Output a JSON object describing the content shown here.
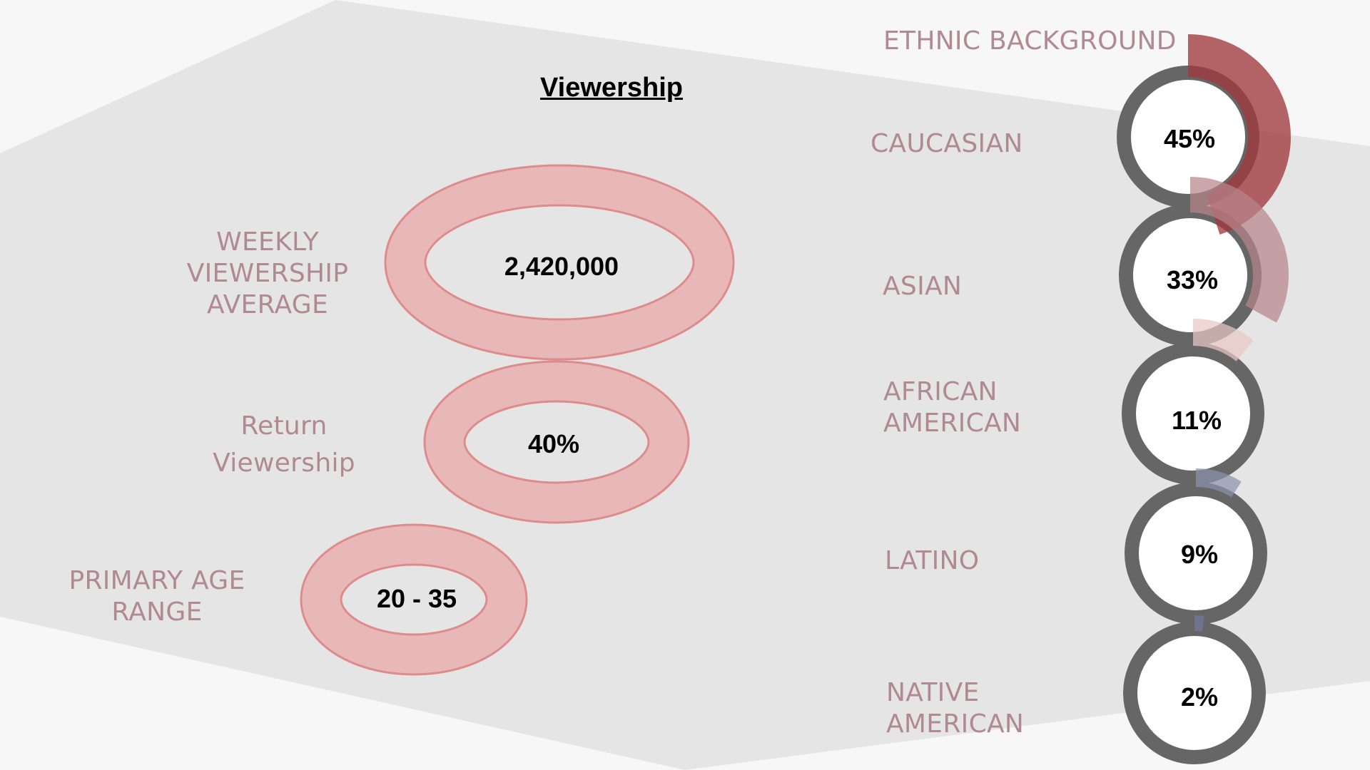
{
  "title": "Viewership",
  "colors": {
    "ring_fill": "#e8b8b9",
    "ring_stroke": "#de8b8c",
    "donut_gray": "#666666",
    "label": "#b08a91",
    "background": "#f7f7f7",
    "band": "#e5e5e5"
  },
  "metrics": [
    {
      "label": "WEEKLY\nVIEWERSHIP\nAVERAGE",
      "value": "2,420,000"
    },
    {
      "label": "Return\nViewership",
      "value": "40%"
    },
    {
      "label": "PRIMARY AGE\nRANGE",
      "value": "20 - 35"
    }
  ],
  "chart_data": {
    "type": "pie",
    "title": "ETHNIC BACKGROUND",
    "categories": [
      "CAUCASIAN",
      "ASIAN",
      "AFRICAN\nAMERICAN",
      "LATINO",
      "NATIVE\nAMERICAN"
    ],
    "values": [
      45,
      33,
      11,
      9,
      2
    ],
    "labels": [
      "45%",
      "33%",
      "11%",
      "9%",
      "2%"
    ],
    "colors": [
      "#a03a3c",
      "#b7848b",
      "#e9c7c6",
      "#8a92ab",
      "#6f7a9e"
    ]
  }
}
